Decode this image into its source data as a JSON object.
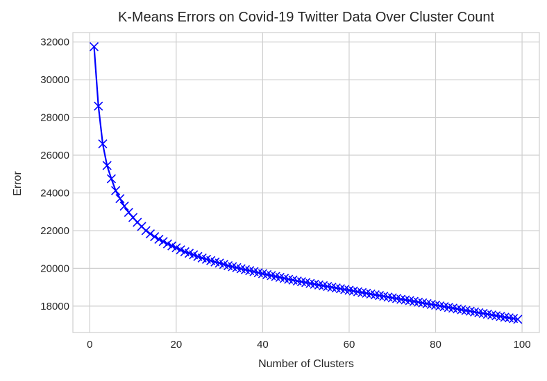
{
  "chart_data": {
    "type": "line",
    "title": "K-Means Errors on Covid-19 Twitter Data Over Cluster Count",
    "xlabel": "Number of Clusters",
    "ylabel": "Error",
    "xlim": [
      -3.9,
      104
    ],
    "ylim": [
      16600,
      32500
    ],
    "xticks": [
      0,
      20,
      40,
      60,
      80,
      100
    ],
    "yticks": [
      18000,
      20000,
      22000,
      24000,
      26000,
      28000,
      30000,
      32000
    ],
    "grid": true,
    "marker": "x",
    "color": "#0000ff",
    "series": [
      {
        "x": [
          1,
          2,
          3,
          4,
          5,
          6,
          7,
          8,
          9,
          10,
          11,
          12,
          13,
          14,
          15,
          16,
          17,
          18,
          19,
          20,
          21,
          22,
          23,
          24,
          25,
          26,
          27,
          28,
          29,
          30,
          31,
          32,
          33,
          34,
          35,
          36,
          37,
          38,
          39,
          40,
          41,
          42,
          43,
          44,
          45,
          46,
          47,
          48,
          49,
          50,
          51,
          52,
          53,
          54,
          55,
          56,
          57,
          58,
          59,
          60,
          61,
          62,
          63,
          64,
          65,
          66,
          67,
          68,
          69,
          70,
          71,
          72,
          73,
          74,
          75,
          76,
          77,
          78,
          79,
          80,
          81,
          82,
          83,
          84,
          85,
          86,
          87,
          88,
          89,
          90,
          91,
          92,
          93,
          94,
          95,
          96,
          97,
          98,
          99
        ],
        "values": [
          31750,
          28600,
          26600,
          25450,
          24750,
          24120,
          23700,
          23300,
          22970,
          22700,
          22440,
          22220,
          22000,
          21830,
          21680,
          21540,
          21420,
          21300,
          21190,
          21090,
          20980,
          20880,
          20800,
          20720,
          20630,
          20550,
          20480,
          20410,
          20340,
          20280,
          20210,
          20140,
          20090,
          20040,
          19980,
          19930,
          19880,
          19830,
          19770,
          19720,
          19670,
          19620,
          19570,
          19520,
          19470,
          19420,
          19380,
          19330,
          19290,
          19250,
          19200,
          19160,
          19120,
          19080,
          19040,
          19000,
          18960,
          18920,
          18880,
          18840,
          18800,
          18760,
          18720,
          18680,
          18640,
          18600,
          18560,
          18520,
          18480,
          18440,
          18400,
          18360,
          18330,
          18290,
          18250,
          18210,
          18170,
          18130,
          18090,
          18050,
          18010,
          17970,
          17930,
          17890,
          17850,
          17810,
          17770,
          17730,
          17690,
          17650,
          17610,
          17570,
          17530,
          17490,
          17450,
          17410,
          17380,
          17340,
          17300
        ]
      }
    ]
  }
}
